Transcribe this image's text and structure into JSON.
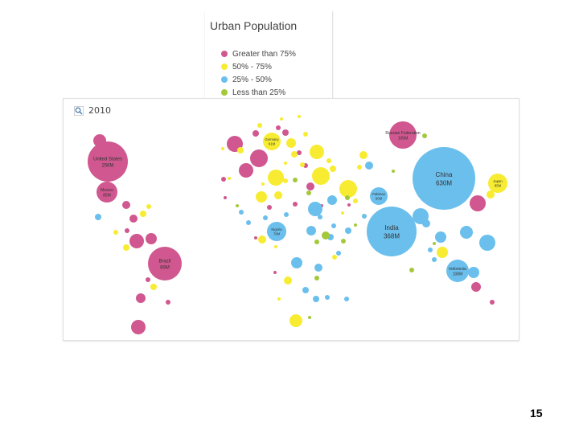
{
  "page": {
    "page_number": "15"
  },
  "chart_data": {
    "type": "bubble-map",
    "title": "Urban Population",
    "year": "2010",
    "legend": [
      {
        "key": "gt75",
        "label": "Greater than 75%",
        "color": "#d0578f"
      },
      {
        "key": "50to75",
        "label": "50% - 75%",
        "color": "#f7ec32"
      },
      {
        "key": "25to50",
        "label": "25% - 50%",
        "color": "#6bbfec"
      },
      {
        "key": "lt25",
        "label": "Less than 25%",
        "color": "#a3c93b"
      }
    ],
    "labeled_countries": [
      {
        "name": "United States",
        "value": "256M",
        "category": "gt75"
      },
      {
        "name": "Mexico",
        "value": "85M",
        "category": "gt75"
      },
      {
        "name": "Brazil",
        "value": "89M",
        "category": "gt75"
      },
      {
        "name": "Germany",
        "value": "61M",
        "category": "50to75"
      },
      {
        "name": "Russian Federation",
        "value": "105M",
        "category": "gt75"
      },
      {
        "name": "China",
        "value": "630M",
        "category": "25to50"
      },
      {
        "name": "Japan",
        "value": "85M",
        "category": "50to75"
      },
      {
        "name": "Pakistan",
        "value": "60M",
        "category": "25to50"
      },
      {
        "name": "India",
        "value": "368M",
        "category": "25to50"
      },
      {
        "name": "Nigeria",
        "value": "78M",
        "category": "25to50"
      },
      {
        "name": "Indonesia",
        "value": "108M",
        "category": "25to50"
      }
    ]
  }
}
